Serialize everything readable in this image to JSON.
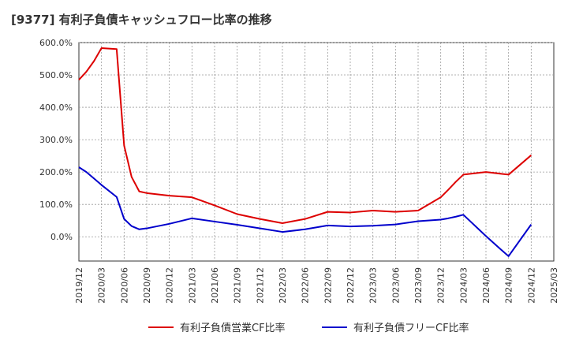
{
  "chart_data": {
    "type": "line",
    "title": "[9377]  有利子負債キャッシュフロー比率の推移",
    "xlabel": "",
    "ylabel": "",
    "ylim": [
      -75,
      600
    ],
    "y_ticks": [
      0,
      100,
      200,
      300,
      400,
      500,
      600
    ],
    "y_tick_labels": [
      "0.0%",
      "100.0%",
      "200.0%",
      "300.0%",
      "400.0%",
      "500.0%",
      "600.0%"
    ],
    "x_tick_labels": [
      "2019/12",
      "2020/03",
      "2020/06",
      "2020/09",
      "2020/12",
      "2021/03",
      "2021/06",
      "2021/09",
      "2021/12",
      "2022/03",
      "2022/06",
      "2022/09",
      "2022/12",
      "2023/03",
      "2023/06",
      "2023/09",
      "2023/12",
      "2024/03",
      "2024/06",
      "2024/09",
      "2024/12",
      "2025/03"
    ],
    "grid": true,
    "legend_position": "bottom",
    "series": [
      {
        "name": "有利子負債営業CF比率",
        "color": "#dd0000",
        "x": [
          0,
          0.33,
          0.67,
          1,
          1.67,
          2,
          2.33,
          2.67,
          3,
          4,
          5,
          6,
          7,
          8,
          9,
          10,
          11,
          12,
          13,
          14,
          15,
          16,
          16.33,
          16.67,
          17,
          18,
          19,
          20
        ],
        "values": [
          485,
          510,
          543,
          583,
          580,
          282,
          185,
          140,
          135,
          127,
          122,
          97,
          70,
          55,
          42,
          55,
          77,
          75,
          81,
          77,
          81,
          122,
          145,
          170,
          192,
          200,
          192,
          252
        ]
      },
      {
        "name": "有利子負債フリーCF比率",
        "color": "#0000cc",
        "x": [
          0,
          0.33,
          0.67,
          1,
          1.67,
          2,
          2.33,
          2.67,
          3,
          4,
          5,
          6,
          7,
          8,
          9,
          10,
          11,
          12,
          13,
          14,
          15,
          16,
          16.33,
          16.67,
          17,
          18,
          18.67,
          19,
          20
        ],
        "values": [
          215,
          200,
          180,
          160,
          123,
          55,
          33,
          23,
          26,
          40,
          57,
          47,
          37,
          26,
          15,
          23,
          35,
          32,
          34,
          38,
          48,
          53,
          57,
          62,
          68,
          2,
          -40,
          -60,
          38
        ]
      }
    ]
  }
}
